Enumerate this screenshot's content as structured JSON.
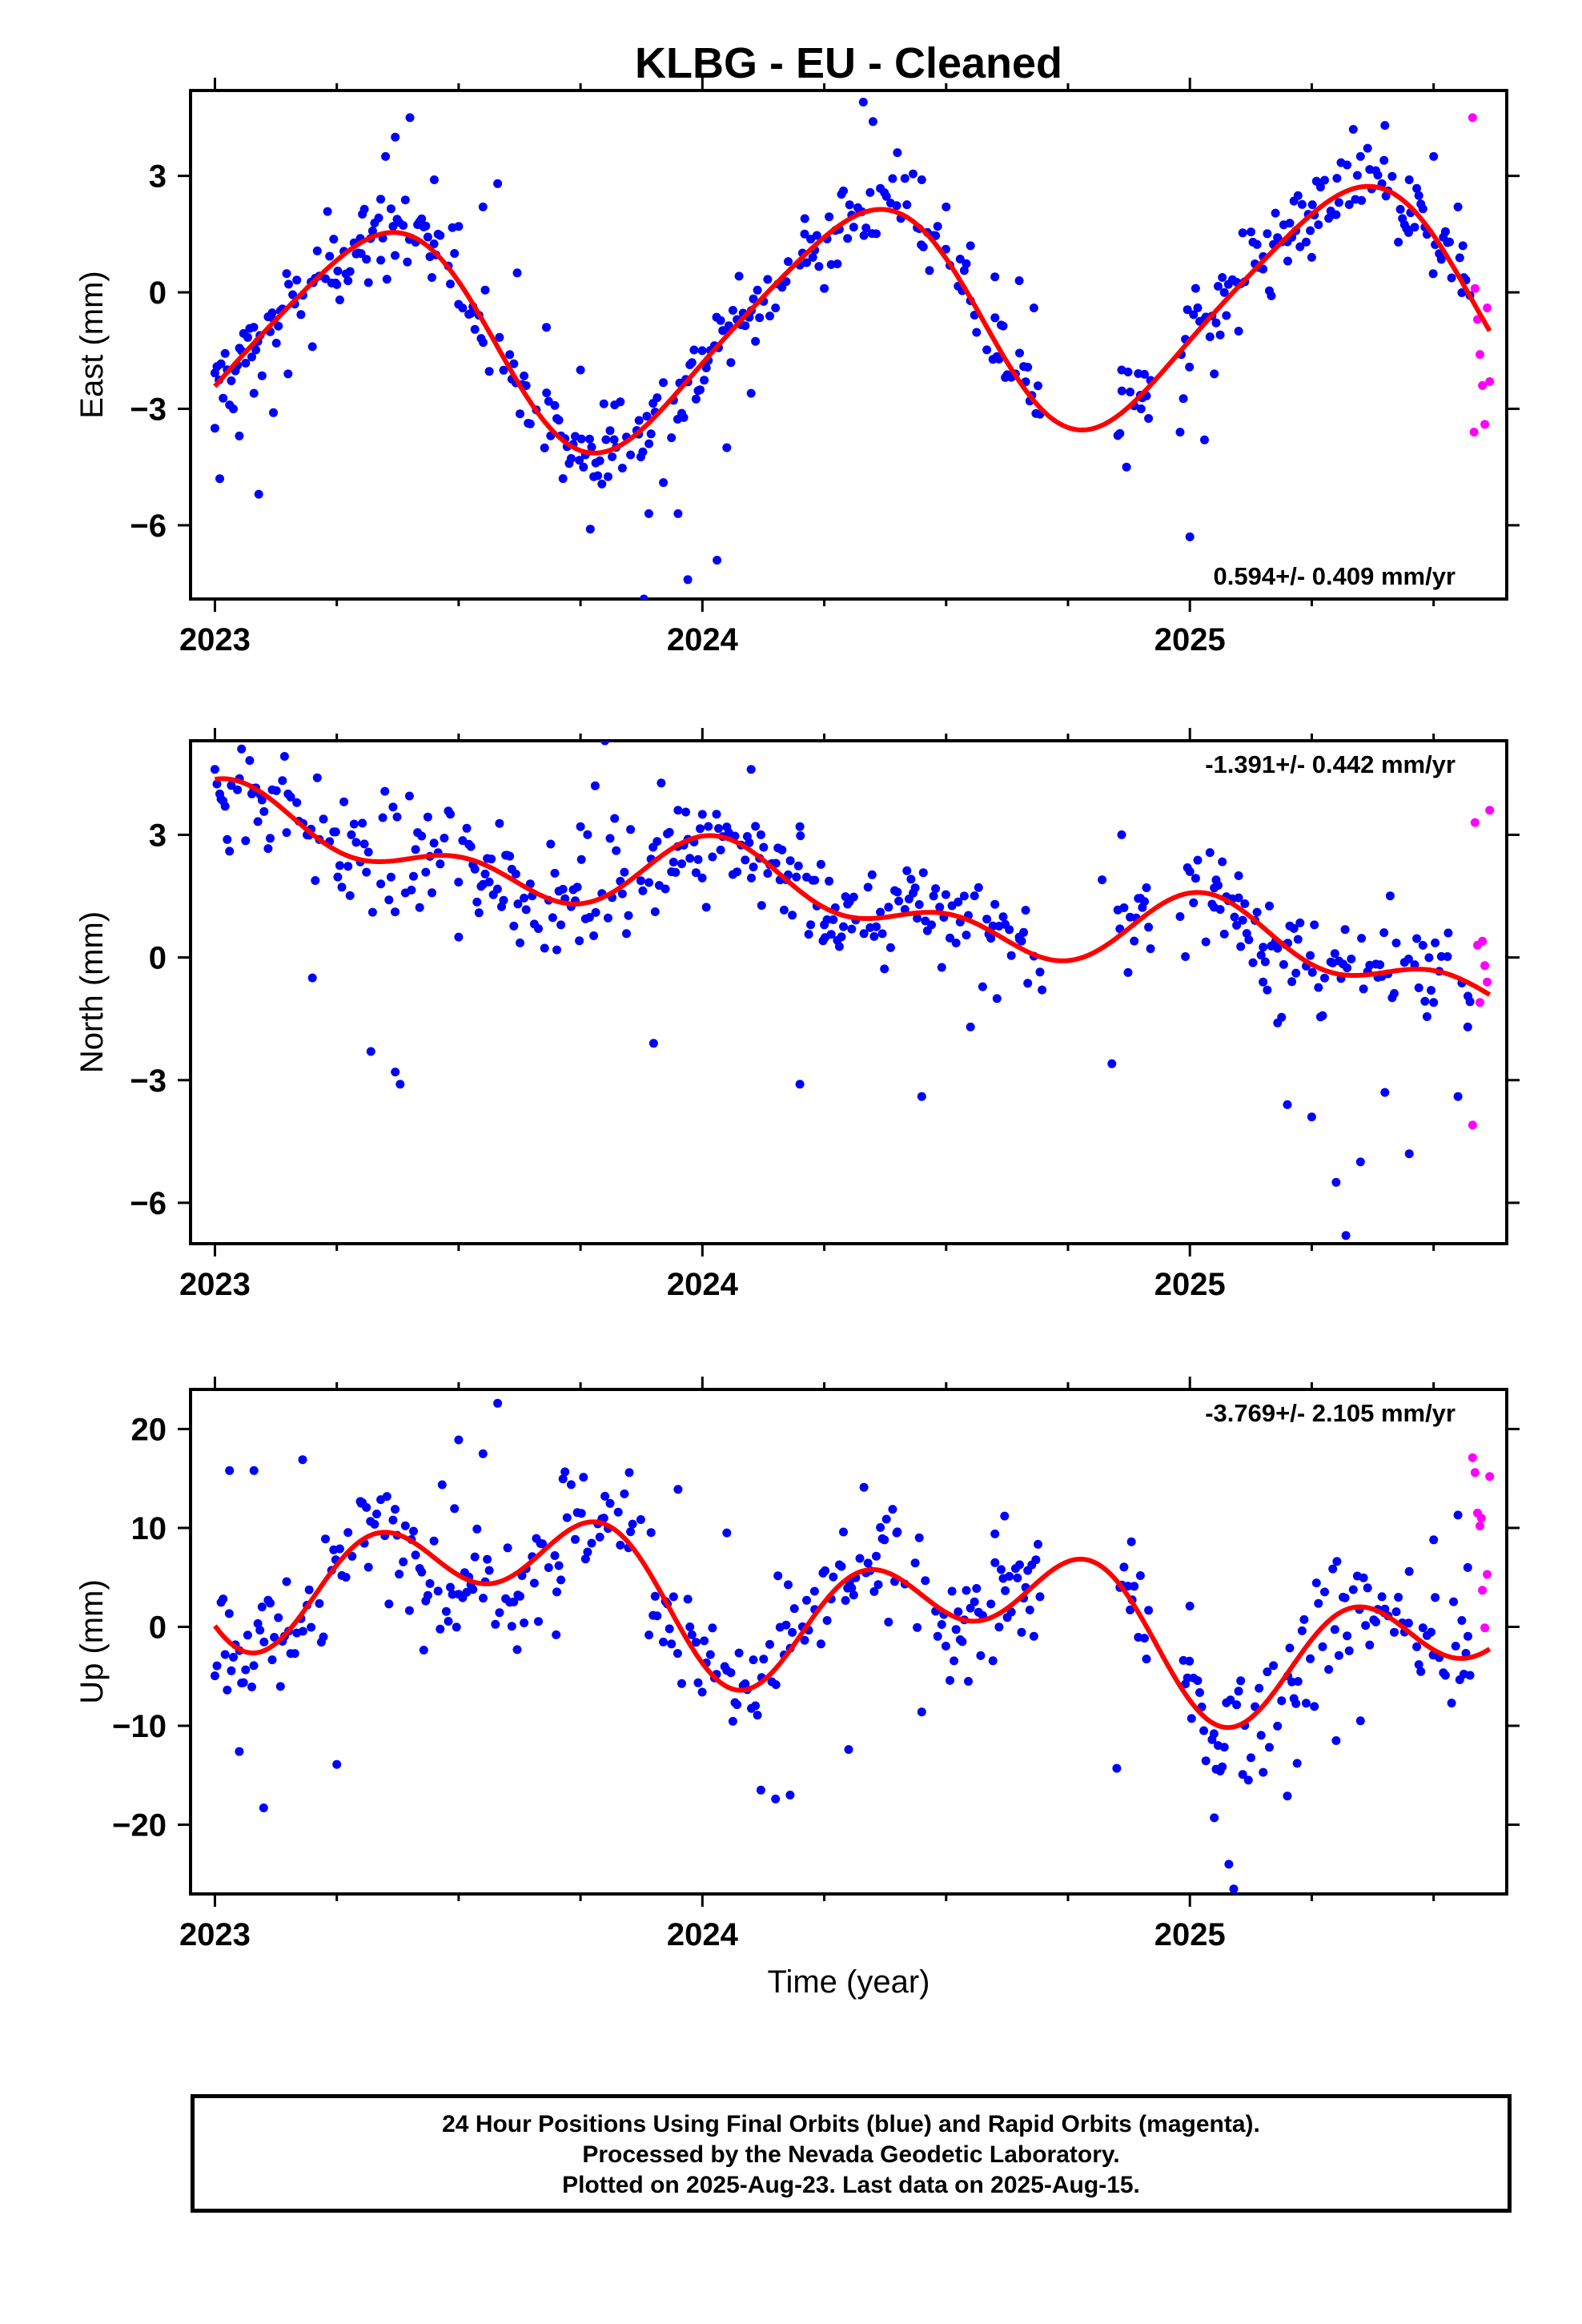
{
  "title": "KLBG  - EU - Cleaned",
  "x_axis_label": "Time (year)",
  "footer": {
    "line1": "24 Hour Positions Using Final Orbits (blue) and Rapid Orbits (magenta).",
    "line2": "Processed by the Nevada Geodetic Laboratory.",
    "line3": "Plotted on 2025-Aug-23. Last data on 2025-Aug-15."
  },
  "colors": {
    "final": "#0000ff",
    "rapid": "#ff00ff",
    "fit": "#ff0000",
    "axis": "#000000"
  },
  "chart_data": [
    {
      "type": "scatter",
      "panel": "east",
      "ylabel": "East (mm)",
      "rate_text": "0.594+/- 0.409 mm/yr",
      "rate_position": "bottom-right",
      "xlim": [
        2022.95,
        2025.65
      ],
      "ylim": [
        -7.9,
        5.2
      ],
      "xticks": [
        2023,
        2024,
        2025
      ],
      "xtick_labels": [
        "2023",
        "2024",
        "2025"
      ],
      "yticks": [
        -6,
        -3,
        0,
        3
      ],
      "ytick_labels": [
        "−6",
        "−3",
        "0",
        "3"
      ],
      "fit": {
        "offset": -0.8,
        "rate": 0.594,
        "cos_annual": -1.2,
        "sin_annual": 2.6,
        "cos_semi": 0.35,
        "sin_semi": -0.2
      },
      "final_spread": 0.75,
      "series": [
        {
          "name": "Final Orbits",
          "color": "#0000ff",
          "points": [
            [
              2023.0,
              -3.5
            ],
            [
              2023.01,
              -4.8
            ],
            [
              2023.03,
              -2.9
            ],
            [
              2023.05,
              -3.7
            ],
            [
              2023.08,
              -2.6
            ],
            [
              2023.09,
              -5.2
            ],
            [
              2023.12,
              -3.1
            ],
            [
              2023.15,
              -2.1
            ],
            [
              2023.2,
              -1.4
            ],
            [
              2023.25,
              0.2
            ],
            [
              2023.3,
              1.0
            ],
            [
              2023.34,
              2.4
            ],
            [
              2023.35,
              3.5
            ],
            [
              2023.37,
              4.0
            ],
            [
              2023.4,
              4.5
            ],
            [
              2023.45,
              2.9
            ],
            [
              2023.5,
              1.7
            ],
            [
              2023.55,
              2.2
            ],
            [
              2023.58,
              2.8
            ],
            [
              2023.62,
              0.5
            ],
            [
              2023.68,
              -0.9
            ],
            [
              2023.75,
              -2.0
            ],
            [
              2023.77,
              -6.1
            ],
            [
              2023.82,
              -2.9
            ],
            [
              2023.87,
              -3.3
            ],
            [
              2023.89,
              -5.7
            ],
            [
              2023.88,
              -7.9
            ],
            [
              2023.92,
              -4.9
            ],
            [
              2023.95,
              -5.7
            ],
            [
              2023.97,
              -7.4
            ],
            [
              2024.03,
              -6.9
            ],
            [
              2024.05,
              -4.0
            ],
            [
              2024.1,
              -2.6
            ],
            [
              2024.15,
              -0.4
            ],
            [
              2024.2,
              0.7
            ],
            [
              2024.21,
              1.9
            ],
            [
              2024.25,
              0.1
            ],
            [
              2024.33,
              4.9
            ],
            [
              2024.35,
              4.4
            ],
            [
              2024.4,
              3.6
            ],
            [
              2024.45,
              2.9
            ],
            [
              2024.5,
              2.2
            ],
            [
              2024.55,
              1.2
            ],
            [
              2024.6,
              0.4
            ],
            [
              2024.65,
              0.3
            ],
            [
              2024.68,
              -0.4
            ],
            [
              2024.86,
              -2.0
            ],
            [
              2024.87,
              -4.5
            ],
            [
              2024.9,
              -3.0
            ],
            [
              2024.98,
              -3.6
            ],
            [
              2025.0,
              -6.3
            ],
            [
              2025.03,
              -3.8
            ],
            [
              2025.05,
              -2.1
            ],
            [
              2025.1,
              -1.0
            ],
            [
              2025.15,
              0.6
            ],
            [
              2025.2,
              1.3
            ],
            [
              2025.25,
              0.9
            ],
            [
              2025.3,
              2.0
            ],
            [
              2025.35,
              3.5
            ],
            [
              2025.4,
              4.3
            ],
            [
              2025.45,
              2.9
            ],
            [
              2025.5,
              3.5
            ],
            [
              2025.55,
              2.2
            ],
            [
              2025.56,
              1.2
            ]
          ]
        },
        {
          "name": "Rapid Orbits",
          "color": "#ff00ff",
          "points": [
            [
              2025.58,
              4.5
            ],
            [
              2025.585,
              0.1
            ],
            [
              2025.59,
              -0.7
            ],
            [
              2025.595,
              -1.6
            ],
            [
              2025.6,
              -2.4
            ],
            [
              2025.605,
              -3.4
            ],
            [
              2025.61,
              -0.4
            ],
            [
              2025.615,
              -2.3
            ],
            [
              2025.583,
              -3.6
            ]
          ]
        }
      ],
      "fit_line": {
        "name": "Fit",
        "color": "#ff0000"
      }
    },
    {
      "type": "scatter",
      "panel": "north",
      "ylabel": "North (mm)",
      "rate_text": "-1.391+/- 0.442 mm/yr",
      "rate_position": "top-right",
      "xlim": [
        2022.95,
        2025.65
      ],
      "ylim": [
        -7.0,
        5.3
      ],
      "xticks": [
        2023,
        2024,
        2025
      ],
      "xtick_labels": [
        "2023",
        "2024",
        "2025"
      ],
      "yticks": [
        -6,
        -3,
        0,
        3
      ],
      "ytick_labels": [
        "−6",
        "−3",
        "0",
        "3"
      ],
      "fit": {
        "offset": 1.4,
        "rate": -1.391,
        "cos_annual": 0.6,
        "sin_annual": 0.3,
        "cos_semi": 0.55,
        "sin_semi": 0.1
      },
      "final_spread": 0.95,
      "series": [
        {
          "name": "Final Orbits",
          "color": "#0000ff",
          "points": [
            [
              2023.0,
              4.6
            ],
            [
              2023.01,
              4.0
            ],
            [
              2023.03,
              2.6
            ],
            [
              2023.15,
              4.0
            ],
            [
              2023.2,
              -0.5
            ],
            [
              2023.28,
              3.0
            ],
            [
              2023.32,
              -2.3
            ],
            [
              2023.37,
              -2.8
            ],
            [
              2023.38,
              -3.1
            ],
            [
              2023.5,
              0.5
            ],
            [
              2023.6,
              2.5
            ],
            [
              2023.75,
              3.2
            ],
            [
              2023.78,
              4.2
            ],
            [
              2023.8,
              5.3
            ],
            [
              2023.82,
              3.4
            ],
            [
              2023.9,
              -2.1
            ],
            [
              2023.95,
              3.6
            ],
            [
              2024.0,
              3.5
            ],
            [
              2024.1,
              4.6
            ],
            [
              2024.12,
              3.0
            ],
            [
              2024.2,
              3.2
            ],
            [
              2024.2,
              -3.1
            ],
            [
              2024.25,
              0.8
            ],
            [
              2024.4,
              1.6
            ],
            [
              2024.45,
              -3.4
            ],
            [
              2024.55,
              -1.7
            ],
            [
              2024.6,
              1.3
            ],
            [
              2024.65,
              0.5
            ],
            [
              2024.82,
              1.9
            ],
            [
              2024.84,
              -2.6
            ],
            [
              2024.86,
              3.0
            ],
            [
              2024.98,
              1.0
            ],
            [
              2025.0,
              2.1
            ],
            [
              2025.05,
              1.7
            ],
            [
              2025.1,
              2.0
            ],
            [
              2025.15,
              -0.6
            ],
            [
              2025.18,
              -1.6
            ],
            [
              2025.2,
              -3.6
            ],
            [
              2025.25,
              -3.9
            ],
            [
              2025.3,
              -5.5
            ],
            [
              2025.32,
              -6.8
            ],
            [
              2025.35,
              -5.0
            ],
            [
              2025.4,
              -3.3
            ],
            [
              2025.45,
              -4.8
            ],
            [
              2025.5,
              -1.1
            ],
            [
              2025.53,
              0.6
            ],
            [
              2025.55,
              -3.4
            ],
            [
              2025.57,
              -1.7
            ]
          ]
        },
        {
          "name": "Rapid Orbits",
          "color": "#ff00ff",
          "points": [
            [
              2025.58,
              -4.1
            ],
            [
              2025.585,
              3.3
            ],
            [
              2025.59,
              0.3
            ],
            [
              2025.595,
              -1.1
            ],
            [
              2025.6,
              0.4
            ],
            [
              2025.605,
              -0.2
            ],
            [
              2025.61,
              -0.6
            ],
            [
              2025.615,
              3.6
            ]
          ]
        }
      ],
      "fit_line": {
        "name": "Fit",
        "color": "#ff0000"
      }
    },
    {
      "type": "scatter",
      "panel": "up",
      "ylabel": "Up (mm)",
      "rate_text": "-3.769+/- 2.105 mm/yr",
      "rate_position": "top-right",
      "xlim": [
        2022.95,
        2025.65
      ],
      "ylim": [
        -27,
        24
      ],
      "xticks": [
        2023,
        2024,
        2025
      ],
      "xtick_labels": [
        "2023",
        "2024",
        "2025"
      ],
      "yticks": [
        -20,
        -10,
        0,
        10,
        20
      ],
      "ytick_labels": [
        "−20",
        "−10",
        "0",
        "10",
        "20"
      ],
      "fit": {
        "offset": 2.0,
        "rate": -3.769,
        "cos_annual": -3.5,
        "sin_annual": -3.0,
        "cos_semi": -3.3,
        "sin_semi": -3.5
      },
      "final_spread": 4.5,
      "series": [
        {
          "name": "Final Orbits",
          "color": "#0000ff",
          "points": [
            [
              2023.03,
              15.8
            ],
            [
              2023.05,
              -12.6
            ],
            [
              2023.08,
              15.8
            ],
            [
              2023.1,
              -18.3
            ],
            [
              2023.18,
              16.9
            ],
            [
              2023.25,
              -13.9
            ],
            [
              2023.3,
              12.5
            ],
            [
              2023.5,
              18.9
            ],
            [
              2023.55,
              17.5
            ],
            [
              2023.58,
              22.6
            ],
            [
              2023.62,
              -2.3
            ],
            [
              2023.7,
              -0.8
            ],
            [
              2023.8,
              13.2
            ],
            [
              2023.85,
              15.6
            ],
            [
              2023.95,
              13.9
            ],
            [
              2024.05,
              9.5
            ],
            [
              2024.12,
              -16.5
            ],
            [
              2024.15,
              -17.4
            ],
            [
              2024.18,
              -17.0
            ],
            [
              2024.23,
              3.6
            ],
            [
              2024.3,
              -12.4
            ],
            [
              2024.4,
              9.6
            ],
            [
              2024.45,
              -8.6
            ],
            [
              2024.6,
              9.4
            ],
            [
              2024.62,
              11.2
            ],
            [
              2024.85,
              -14.3
            ],
            [
              2024.88,
              8.6
            ],
            [
              2025.0,
              2.1
            ],
            [
              2025.05,
              -19.3
            ],
            [
              2025.08,
              -24.0
            ],
            [
              2025.09,
              -26.5
            ],
            [
              2025.12,
              -15.5
            ],
            [
              2025.2,
              -17.1
            ],
            [
              2025.22,
              -13.8
            ],
            [
              2025.3,
              -11.5
            ],
            [
              2025.35,
              -9.5
            ],
            [
              2025.4,
              1.8
            ],
            [
              2025.45,
              5.6
            ],
            [
              2025.5,
              8.8
            ],
            [
              2025.55,
              11.3
            ],
            [
              2025.57,
              6.0
            ]
          ]
        },
        {
          "name": "Rapid Orbits",
          "color": "#ff00ff",
          "points": [
            [
              2025.58,
              17.1
            ],
            [
              2025.585,
              15.6
            ],
            [
              2025.59,
              11.5
            ],
            [
              2025.595,
              10.2
            ],
            [
              2025.6,
              3.7
            ],
            [
              2025.605,
              -0.1
            ],
            [
              2025.61,
              5.3
            ],
            [
              2025.615,
              15.2
            ],
            [
              2025.598,
              11.0
            ]
          ]
        }
      ],
      "fit_line": {
        "name": "Fit",
        "color": "#ff0000"
      }
    }
  ]
}
